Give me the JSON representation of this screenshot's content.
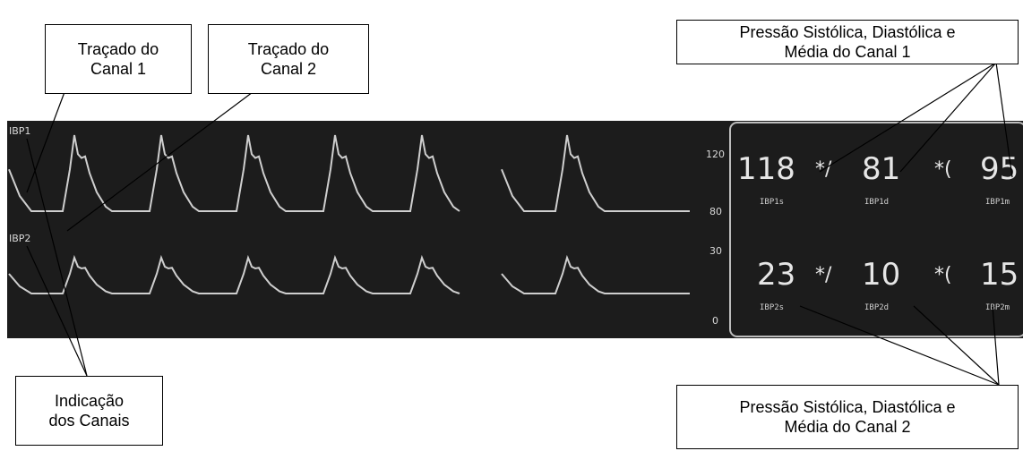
{
  "callouts": [
    {
      "lines": [
        "Traçado do",
        "Canal 1"
      ]
    },
    {
      "lines": [
        "Traçado do",
        "Canal 2"
      ]
    },
    {
      "lines": [
        "Pressão Sistólica, Diastólica e",
        "Média do Canal 1"
      ]
    },
    {
      "lines": [
        "Indicação",
        "dos Canais"
      ]
    },
    {
      "lines": [
        "Pressão Sistólica, Diastólica e",
        "Média do Canal 2"
      ]
    }
  ],
  "monitor": {
    "channels": [
      "IBP1",
      "IBP2"
    ],
    "scale": [
      "120",
      "80",
      "30",
      "0"
    ],
    "readings": [
      {
        "systolic": "118",
        "sep1": "*/",
        "diastolic": "81",
        "sep2": "*(",
        "mean": "95",
        "labels": [
          "IBP1s",
          "IBP1d",
          "IBP1m"
        ]
      },
      {
        "systolic": "23",
        "sep1": "*/",
        "diastolic": "10",
        "sep2": "*(",
        "mean": "15",
        "labels": [
          "IBP2s",
          "IBP2d",
          "IBP2m"
        ]
      }
    ]
  }
}
